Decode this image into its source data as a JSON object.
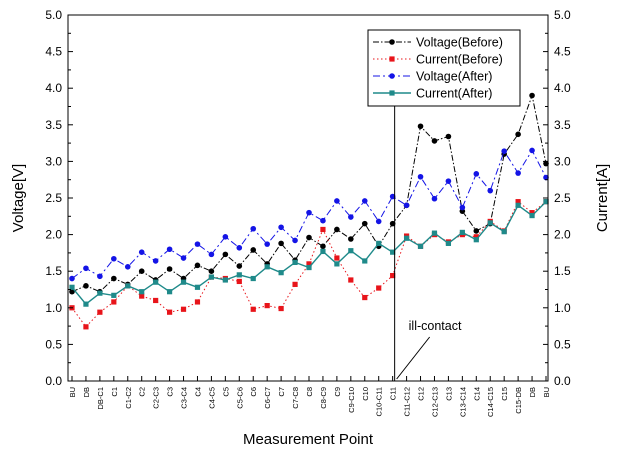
{
  "chart_data": {
    "type": "line",
    "xlabel": "Measurement Point",
    "ylabel_left": "Voltage[V]",
    "ylabel_right": "Current[A]",
    "ylim": [
      0,
      5
    ],
    "yticks": [
      "0.0",
      "0.5",
      "1.0",
      "1.5",
      "2.0",
      "2.5",
      "3.0",
      "3.5",
      "4.0",
      "4.5",
      "5.0"
    ],
    "yticks_right": [
      "0.0",
      "0.5",
      "1.0",
      "1.5",
      "2.0",
      "2.5",
      "3.0",
      "3.5",
      "4.0",
      "4.5",
      "5.0"
    ],
    "grid": false,
    "legend_position": "top-right",
    "categories": [
      "BU",
      "DB",
      "DB-C1",
      "C1",
      "C1-C2",
      "C2",
      "C2-C3",
      "C3",
      "C3-C4",
      "C4",
      "C4-C5",
      "C5",
      "C5-C6",
      "C6",
      "C6-C7",
      "C7",
      "C7-C8",
      "C8",
      "C8-C9",
      "C9",
      "C9-C10",
      "C10",
      "C10-C11",
      "C11",
      "C11-C12",
      "C12",
      "C12-C13",
      "C13",
      "C13-C14",
      "C14",
      "C14-C15",
      "C15",
      "C15-DB",
      "DB",
      "BU"
    ],
    "series": [
      {
        "name": "Voltage(Before)",
        "color": "#000000",
        "marker": "circle",
        "dash": "6,2,1.5,2",
        "values": [
          1.22,
          1.3,
          1.22,
          1.4,
          1.32,
          1.5,
          1.38,
          1.53,
          1.4,
          1.58,
          1.5,
          1.73,
          1.57,
          1.79,
          1.6,
          1.88,
          1.65,
          1.96,
          1.84,
          2.07,
          1.94,
          2.15,
          1.84,
          2.15,
          2.4,
          3.48,
          3.28,
          3.34,
          2.32,
          2.05,
          2.15,
          3.1,
          3.37,
          3.9,
          2.97
        ]
      },
      {
        "name": "Current(Before)",
        "color": "#e8141a",
        "marker": "square",
        "dash": "1.5,2.5",
        "values": [
          1.0,
          0.74,
          0.94,
          1.08,
          1.3,
          1.16,
          1.1,
          0.94,
          0.98,
          1.08,
          1.42,
          1.4,
          1.36,
          0.98,
          1.03,
          0.99,
          1.32,
          1.6,
          2.07,
          1.68,
          1.38,
          1.14,
          1.27,
          1.44,
          1.98,
          1.84,
          2.0,
          1.9,
          2.0,
          1.97,
          2.18,
          2.05,
          2.45,
          2.3,
          2.45
        ]
      },
      {
        "name": "Voltage(After)",
        "color": "#1414e6",
        "marker": "circle",
        "dash": "7,3,2,3",
        "values": [
          1.4,
          1.54,
          1.43,
          1.67,
          1.56,
          1.76,
          1.64,
          1.8,
          1.68,
          1.87,
          1.73,
          1.97,
          1.82,
          2.08,
          1.87,
          2.1,
          1.92,
          2.3,
          2.19,
          2.46,
          2.24,
          2.46,
          2.18,
          2.52,
          2.4,
          2.79,
          2.49,
          2.73,
          2.37,
          2.83,
          2.6,
          3.14,
          2.84,
          3.15,
          2.78
        ]
      },
      {
        "name": "Current(After)",
        "color": "#1f8a8a",
        "marker": "square",
        "dash": "",
        "values": [
          1.28,
          1.05,
          1.2,
          1.17,
          1.3,
          1.22,
          1.35,
          1.22,
          1.35,
          1.28,
          1.42,
          1.38,
          1.45,
          1.4,
          1.56,
          1.48,
          1.62,
          1.55,
          1.77,
          1.6,
          1.78,
          1.64,
          1.88,
          1.76,
          1.95,
          1.84,
          2.02,
          1.88,
          2.03,
          1.93,
          2.16,
          2.04,
          2.4,
          2.26,
          2.45
        ]
      }
    ],
    "annotation": {
      "text": "ill-contact",
      "vline_after_category": 23
    }
  }
}
